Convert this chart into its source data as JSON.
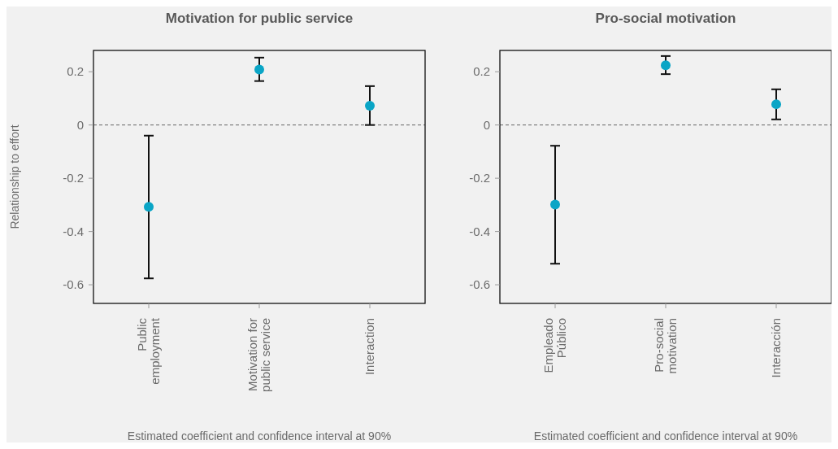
{
  "chart_data": [
    {
      "type": "scatter",
      "title": "Motivation for public service",
      "ylabel": "Relationship to effort",
      "xlabel": "Estimated coefficient and confidence interval at 90%",
      "categories": [
        "Public\nemployment",
        "Motivation for\npublic service",
        "Interaction"
      ],
      "series": [
        {
          "color": "#0aa5c6",
          "values": [
            -0.307,
            0.208,
            0.072
          ],
          "errors": [
            [
              -0.576,
              -0.04
            ],
            [
              0.165,
              0.253
            ],
            [
              0,
              0.146
            ]
          ]
        }
      ],
      "ylim": [
        -0.67,
        0.28
      ],
      "yticks": [
        0.2,
        0,
        -0.2,
        -0.4,
        -0.6
      ],
      "marker": "circle",
      "grid": false,
      "ref_lines": [
        {
          "axis": "y",
          "value": 0,
          "line_style": "dashed",
          "color": "#666666"
        }
      ]
    },
    {
      "type": "scatter",
      "title": "Pro-social motivation",
      "xlabel": "Estimated coefficient and confidence interval at 90%",
      "categories": [
        "Empleado\nPúblico",
        "Pro-social\nmotivation",
        "Interacción"
      ],
      "series": [
        {
          "color": "#0aa5c6",
          "values": [
            -0.299,
            0.224,
            0.078
          ],
          "errors": [
            [
              -0.521,
              -0.078
            ],
            [
              0.191,
              0.259
            ],
            [
              0.021,
              0.134
            ]
          ]
        }
      ],
      "ylim": [
        -0.67,
        0.28
      ],
      "yticks": [
        0.2,
        0,
        -0.2,
        -0.4,
        -0.6
      ],
      "marker": "circle",
      "grid": false,
      "ref_lines": [
        {
          "axis": "y",
          "value": 0,
          "line_style": "dashed",
          "color": "#666666"
        }
      ]
    }
  ]
}
